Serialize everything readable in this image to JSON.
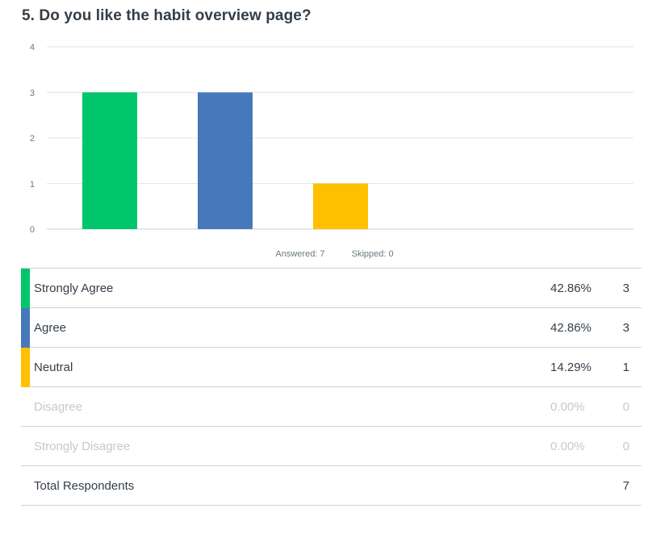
{
  "question": {
    "title": "5. Do you like the habit overview page?"
  },
  "summary": {
    "answered": "Answered: 7",
    "skipped": "Skipped: 0"
  },
  "chart_data": {
    "type": "bar",
    "categories": [
      "Strongly Agree",
      "Agree",
      "Neutral",
      "Disagree",
      "Strongly Disagree"
    ],
    "values": [
      3,
      3,
      1,
      0,
      0
    ],
    "colors": [
      "#00c66b",
      "#4778bb",
      "#ffc000",
      "#c6a66a",
      "#e3c4a6"
    ],
    "ylim": [
      0,
      4
    ],
    "yticks": [
      "0",
      "1",
      "2",
      "3",
      "4"
    ],
    "grid": true,
    "xlabel": "",
    "ylabel": ""
  },
  "table": {
    "rows": [
      {
        "label": "Strongly Agree",
        "percent": "42.86%",
        "count": "3",
        "color": "#00c66b"
      },
      {
        "label": "Agree",
        "percent": "42.86%",
        "count": "3",
        "color": "#4778bb"
      },
      {
        "label": "Neutral",
        "percent": "14.29%",
        "count": "1",
        "color": "#ffc000"
      },
      {
        "label": "Disagree",
        "percent": "0.00%",
        "count": "0"
      },
      {
        "label": "Strongly Disagree",
        "percent": "0.00%",
        "count": "0"
      }
    ],
    "total": {
      "label": "Total Respondents",
      "count": "7"
    }
  }
}
